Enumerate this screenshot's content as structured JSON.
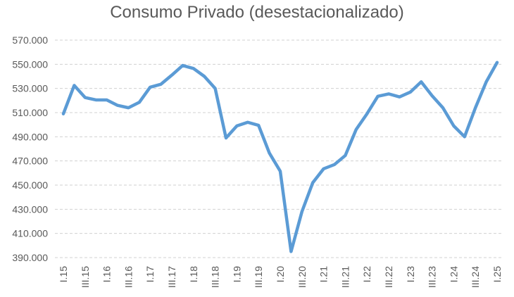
{
  "chart_data": {
    "type": "line",
    "title": "Consumo Privado (desestacionalizado)",
    "xlabel": "",
    "ylabel": "",
    "ylim": [
      390000,
      570000
    ],
    "y_ticks": [
      390000,
      410000,
      430000,
      450000,
      470000,
      490000,
      510000,
      530000,
      550000,
      570000
    ],
    "y_tick_labels": [
      "390.000",
      "410.000",
      "430.000",
      "450.000",
      "470.000",
      "490.000",
      "510.000",
      "530.000",
      "550.000",
      "570.000"
    ],
    "grid": true,
    "legend": "none",
    "x": [
      "I.15",
      "II.15",
      "III.15",
      "IV.15",
      "I.16",
      "II.16",
      "III.16",
      "IV.16",
      "I.17",
      "II.17",
      "III.17",
      "IV.17",
      "I.18",
      "II.18",
      "III.18",
      "IV.18",
      "I.19",
      "II.19",
      "III.19",
      "IV.19",
      "I.20",
      "II.20",
      "III.20",
      "IV.20",
      "I.21",
      "II.21",
      "III.21",
      "IV.21",
      "I.22",
      "II.22",
      "III.22",
      "IV.22",
      "I.23",
      "II.23",
      "III.23",
      "IV.23",
      "I.24",
      "II.24",
      "III.24",
      "IV.24",
      "I.25"
    ],
    "x_tick_labels": [
      "I.15",
      "III.15",
      "I.16",
      "III.16",
      "I.17",
      "III.17",
      "I.18",
      "III.18",
      "I.19",
      "III.19",
      "I.20",
      "III.20",
      "I.21",
      "III.21",
      "I.22",
      "III.22",
      "I.23",
      "III.23",
      "I.24",
      "III.24",
      "I.25"
    ],
    "series": [
      {
        "name": "",
        "color": "#5b9bd5",
        "values": [
          509000,
          532500,
          522500,
          520500,
          520500,
          516000,
          514000,
          518500,
          531000,
          533500,
          541000,
          549000,
          546500,
          540000,
          530000,
          489000,
          499000,
          502000,
          499500,
          476500,
          461500,
          395000,
          428000,
          452000,
          463500,
          467000,
          474500,
          496000,
          509000,
          523500,
          525500,
          523000,
          527000,
          535500,
          524000,
          514000,
          499000,
          490000,
          514000,
          535500,
          551500
        ]
      }
    ]
  }
}
